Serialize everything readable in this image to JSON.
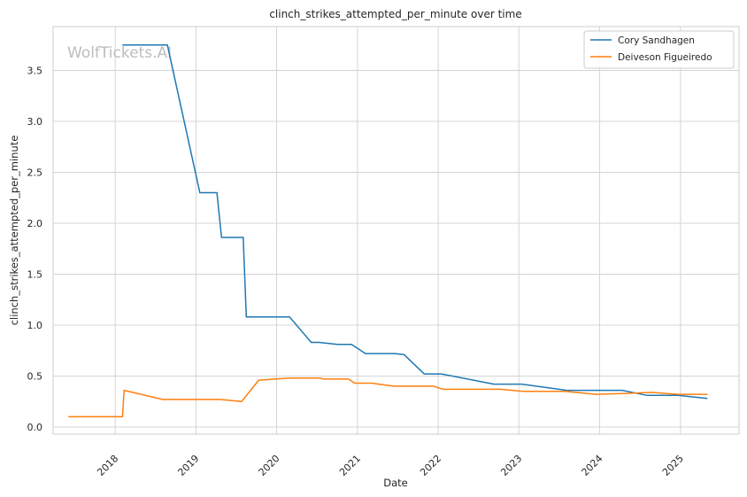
{
  "chart_data": {
    "type": "line",
    "title": "clinch_strikes_attempted_per_minute over time",
    "xlabel": "Date",
    "ylabel": "clinch_strikes_attempted_per_minute",
    "xlim": [
      "2017-03-26",
      "2025-09-23"
    ],
    "ylim": [
      -0.07,
      3.93
    ],
    "x_ticks": [
      "2018-01-01",
      "2019-01-01",
      "2020-01-01",
      "2021-01-01",
      "2022-01-01",
      "2023-01-01",
      "2024-01-01",
      "2025-01-01"
    ],
    "x_tick_labels": [
      "2018",
      "2019",
      "2020",
      "2021",
      "2022",
      "2023",
      "2024",
      "2025"
    ],
    "y_ticks": [
      0.0,
      0.5,
      1.0,
      1.5,
      2.0,
      2.5,
      3.0,
      3.5
    ],
    "y_tick_labels": [
      "0.0",
      "0.5",
      "1.0",
      "1.5",
      "2.0",
      "2.5",
      "3.0",
      "3.5"
    ],
    "grid": true,
    "legend_position": "top-right",
    "watermark": "WolfTickets.AI",
    "series": [
      {
        "name": "Cory Sandhagen",
        "color": "#1f77b4",
        "points": [
          [
            "2018-02-03",
            3.75
          ],
          [
            "2018-08-25",
            3.75
          ],
          [
            "2019-01-19",
            2.3
          ],
          [
            "2019-04-06",
            2.3
          ],
          [
            "2019-04-27",
            1.86
          ],
          [
            "2019-08-03",
            1.86
          ],
          [
            "2019-08-17",
            1.08
          ],
          [
            "2020-02-29",
            1.08
          ],
          [
            "2020-06-06",
            0.83
          ],
          [
            "2020-07-11",
            0.83
          ],
          [
            "2020-10-03",
            0.81
          ],
          [
            "2020-12-05",
            0.81
          ],
          [
            "2021-02-06",
            0.72
          ],
          [
            "2021-06-19",
            0.72
          ],
          [
            "2021-07-31",
            0.71
          ],
          [
            "2021-10-30",
            0.52
          ],
          [
            "2022-01-15",
            0.52
          ],
          [
            "2022-09-10",
            0.42
          ],
          [
            "2023-01-14",
            0.42
          ],
          [
            "2023-08-05",
            0.36
          ],
          [
            "2024-04-13",
            0.36
          ],
          [
            "2024-08-03",
            0.31
          ],
          [
            "2024-12-21",
            0.31
          ],
          [
            "2025-05-03",
            0.28
          ]
        ]
      },
      {
        "name": "Deiveson Figueiredo",
        "color": "#ff7f0e",
        "points": [
          [
            "2017-06-03",
            0.1
          ],
          [
            "2018-02-03",
            0.1
          ],
          [
            "2018-02-10",
            0.36
          ],
          [
            "2018-08-04",
            0.27
          ],
          [
            "2019-04-20",
            0.27
          ],
          [
            "2019-07-27",
            0.25
          ],
          [
            "2019-10-12",
            0.46
          ],
          [
            "2020-02-29",
            0.48
          ],
          [
            "2020-07-18",
            0.48
          ],
          [
            "2020-08-01",
            0.47
          ],
          [
            "2020-11-21",
            0.47
          ],
          [
            "2020-12-19",
            0.43
          ],
          [
            "2021-03-06",
            0.43
          ],
          [
            "2021-06-12",
            0.4
          ],
          [
            "2021-12-11",
            0.4
          ],
          [
            "2022-01-22",
            0.37
          ],
          [
            "2022-10-08",
            0.37
          ],
          [
            "2023-01-21",
            0.35
          ],
          [
            "2023-07-29",
            0.35
          ],
          [
            "2023-12-16",
            0.32
          ],
          [
            "2024-05-11",
            0.33
          ],
          [
            "2024-08-24",
            0.34
          ],
          [
            "2024-12-21",
            0.32
          ],
          [
            "2025-05-03",
            0.32
          ]
        ]
      }
    ]
  }
}
